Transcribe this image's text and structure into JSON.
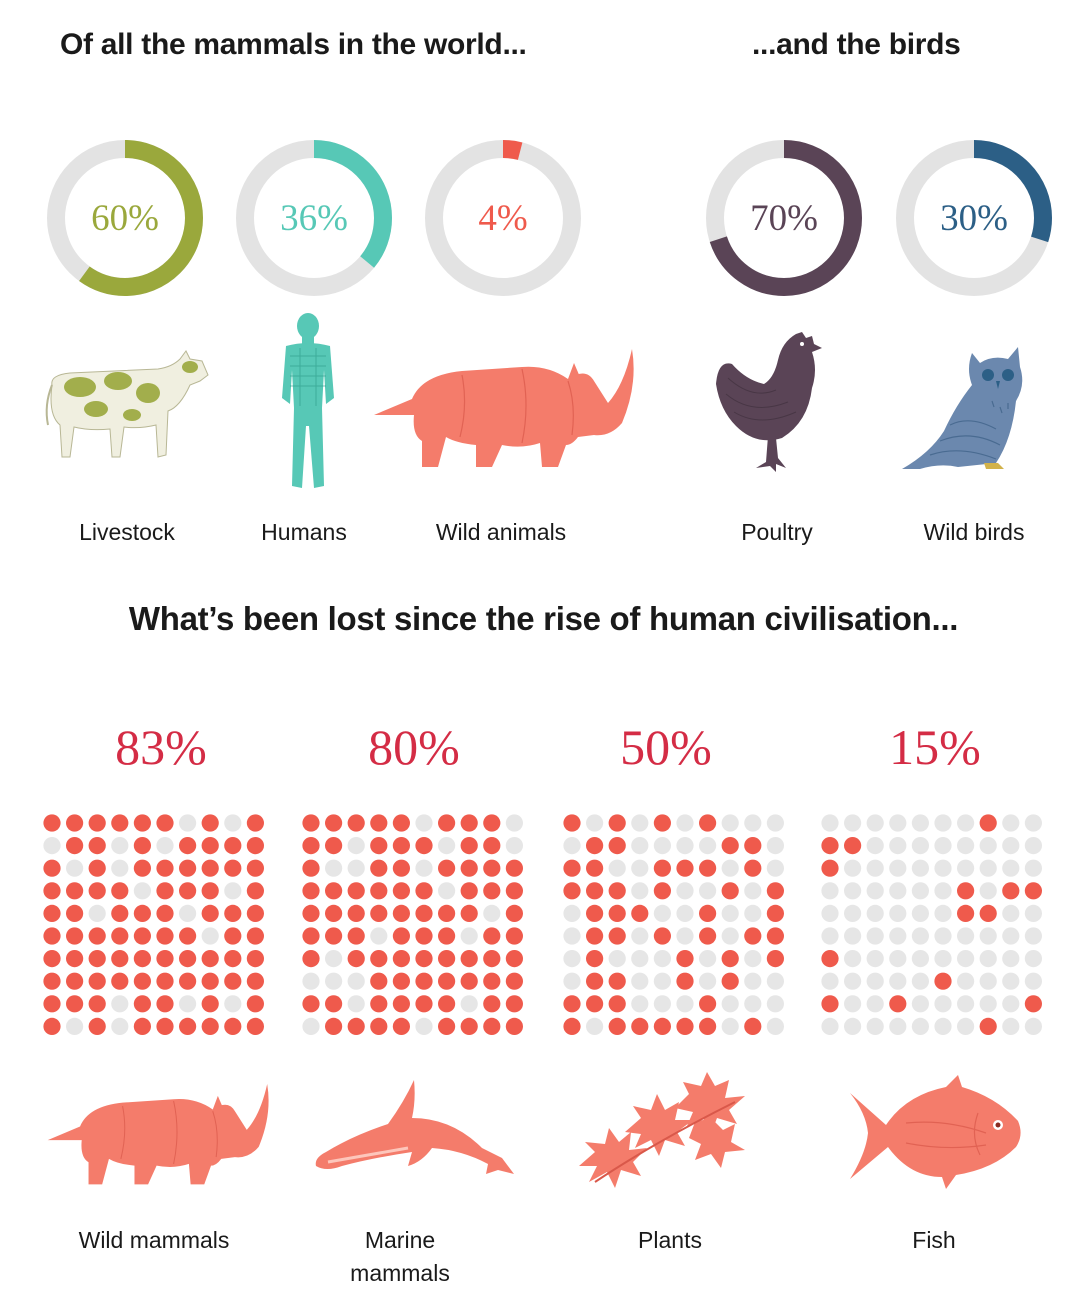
{
  "headings": {
    "mammals": "Of all the mammals in the world...",
    "birds": "...and the birds",
    "lost": "What’s been lost since the rise of human civilisation..."
  },
  "chart_data": [
    {
      "type": "pie",
      "group": "mammals",
      "series": [
        {
          "name": "Livestock",
          "value": 60,
          "label": "60%",
          "color": "#9aa83c"
        },
        {
          "name": "Humans",
          "value": 36,
          "label": "36%",
          "color": "#57c8b6"
        },
        {
          "name": "Wild animals",
          "value": 4,
          "label": "4%",
          "color": "#ef5a4c"
        }
      ]
    },
    {
      "type": "pie",
      "group": "birds",
      "series": [
        {
          "name": "Poultry",
          "value": 70,
          "label": "70%",
          "color": "#5a4456"
        },
        {
          "name": "Wild birds",
          "value": 30,
          "label": "30%",
          "color": "#2c5f86"
        }
      ]
    },
    {
      "type": "waffle",
      "group": "lost",
      "grid": [
        10,
        10
      ],
      "series": [
        {
          "name": "Wild mammals",
          "value": 83,
          "label": "83%"
        },
        {
          "name": "Marine mammals",
          "value": 80,
          "label": "80%"
        },
        {
          "name": "Plants",
          "value": 50,
          "label": "50%"
        },
        {
          "name": "Fish",
          "value": 15,
          "label": "15%"
        }
      ]
    }
  ],
  "colors": {
    "track": "#e3e3e3",
    "lost": "#ef5a4c",
    "lost_text": "#d42c45",
    "dot_empty": "#e6e6e6"
  },
  "icons": [
    "cow-icon",
    "human-icon",
    "rhino-icon",
    "chicken-icon",
    "owl-icon",
    "dolphin-icon",
    "leaf-icon",
    "fish-icon"
  ]
}
